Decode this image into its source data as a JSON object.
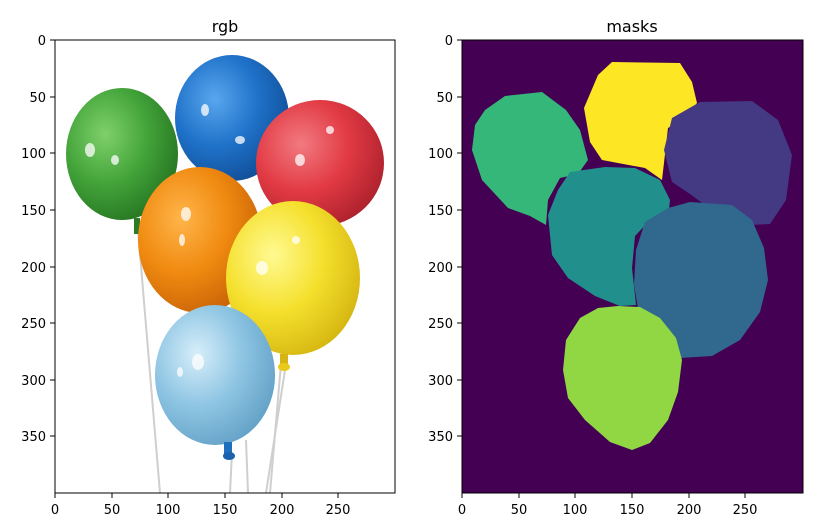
{
  "panels": [
    {
      "title": "rgb",
      "x_ticks": [
        "0",
        "50",
        "100",
        "150",
        "200",
        "250"
      ],
      "y_ticks": [
        "0",
        "50",
        "100",
        "150",
        "200",
        "250",
        "300",
        "350"
      ]
    },
    {
      "title": "masks",
      "x_ticks": [
        "0",
        "50",
        "100",
        "150",
        "200",
        "250"
      ],
      "y_ticks": [
        "0",
        "50",
        "100",
        "150",
        "200",
        "250",
        "300",
        "350"
      ]
    }
  ],
  "colors": {
    "balloon_green": "#43a43a",
    "balloon_blue": "#1f72c9",
    "balloon_red": "#e23a44",
    "balloon_orange": "#f08a10",
    "balloon_yellow": "#f5e02d",
    "balloon_light_blue": "#8ec5e3",
    "mask_background": "#440154",
    "mask_yellow": "#fde725",
    "mask_green": "#35b779",
    "mask_purple": "#443983",
    "mask_teal": "#21908d",
    "mask_blue": "#31688e",
    "mask_lime": "#90d743"
  }
}
